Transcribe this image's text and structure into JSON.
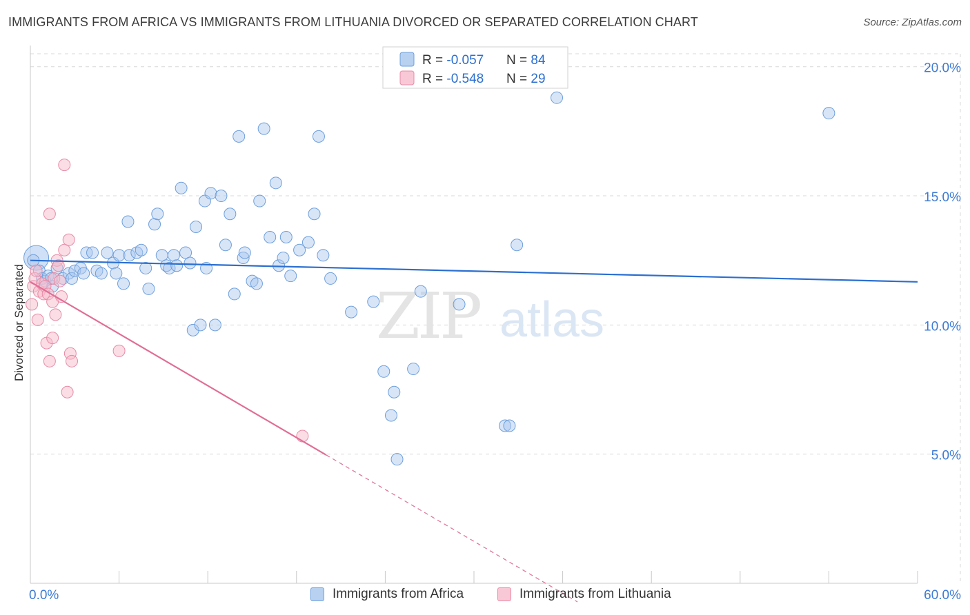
{
  "title": "IMMIGRANTS FROM AFRICA VS IMMIGRANTS FROM LITHUANIA DIVORCED OR SEPARATED CORRELATION CHART",
  "source": "Source: ZipAtlas.com",
  "watermark": {
    "zip": "ZIP",
    "atlas": "atlas"
  },
  "legend": {
    "rows": [
      {
        "r_label": "R = ",
        "r_value": "-0.057",
        "n_label": "N = ",
        "n_value": "84"
      },
      {
        "r_label": "R = ",
        "r_value": "-0.548",
        "n_label": "N = ",
        "n_value": "29"
      }
    ]
  },
  "bottom_legend": [
    "Immigrants from Africa",
    "Immigrants from Lithuania"
  ],
  "colors": {
    "africa_fill": "#a9c6ee",
    "africa_stroke": "#6d9fdc",
    "africa_line": "#2b6fd0",
    "lithuania_fill": "#f6bccc",
    "lithuania_stroke": "#e88aa6",
    "lithuania_line": "#e06d95",
    "tick_label": "#3d7bd4",
    "grid": "#d8d8d8"
  },
  "chart_data": {
    "type": "scatter",
    "title": "IMMIGRANTS FROM AFRICA VS IMMIGRANTS FROM LITHUANIA DIVORCED OR SEPARATED CORRELATION CHART",
    "xlabel": "",
    "ylabel": "Divorced or Separated",
    "xlim": [
      0,
      60
    ],
    "ylim": [
      0,
      20.5
    ],
    "x_tick_labels": [
      "0.0%",
      "60.0%"
    ],
    "y_ticks": [
      5,
      10,
      15,
      20
    ],
    "y_tick_labels": [
      "5.0%",
      "10.0%",
      "15.0%",
      "20.0%"
    ],
    "series": [
      {
        "name": "Immigrants from Africa",
        "trend": {
          "x": [
            0,
            60
          ],
          "y": [
            12.5,
            11.67
          ]
        },
        "points": [
          [
            0.4,
            12.6
          ],
          [
            0.6,
            12.1
          ],
          [
            0.8,
            11.8
          ],
          [
            1.0,
            11.7
          ],
          [
            1.2,
            11.9
          ],
          [
            1.5,
            11.5
          ],
          [
            1.8,
            12.2
          ],
          [
            2.2,
            11.8
          ],
          [
            2.6,
            12.0
          ],
          [
            2.8,
            11.8
          ],
          [
            3.0,
            12.1
          ],
          [
            3.4,
            12.2
          ],
          [
            3.6,
            12.0
          ],
          [
            3.8,
            12.8
          ],
          [
            4.2,
            12.8
          ],
          [
            4.5,
            12.1
          ],
          [
            4.8,
            12.0
          ],
          [
            5.2,
            12.8
          ],
          [
            5.6,
            12.4
          ],
          [
            5.8,
            12.0
          ],
          [
            6.0,
            12.7
          ],
          [
            6.3,
            11.6
          ],
          [
            6.6,
            14.0
          ],
          [
            6.7,
            12.7
          ],
          [
            7.2,
            12.8
          ],
          [
            7.5,
            12.9
          ],
          [
            7.8,
            12.2
          ],
          [
            8.0,
            11.4
          ],
          [
            8.4,
            13.9
          ],
          [
            8.6,
            14.3
          ],
          [
            8.9,
            12.7
          ],
          [
            9.2,
            12.3
          ],
          [
            9.4,
            12.2
          ],
          [
            9.7,
            12.7
          ],
          [
            9.9,
            12.3
          ],
          [
            10.2,
            15.3
          ],
          [
            10.5,
            12.8
          ],
          [
            10.8,
            12.4
          ],
          [
            11.0,
            9.8
          ],
          [
            11.2,
            13.8
          ],
          [
            11.5,
            10.0
          ],
          [
            11.8,
            14.8
          ],
          [
            11.9,
            12.2
          ],
          [
            12.2,
            15.1
          ],
          [
            12.5,
            10.0
          ],
          [
            12.9,
            15.0
          ],
          [
            13.2,
            13.1
          ],
          [
            13.5,
            14.3
          ],
          [
            13.8,
            11.2
          ],
          [
            14.1,
            17.3
          ],
          [
            14.4,
            12.6
          ],
          [
            14.5,
            12.8
          ],
          [
            15.0,
            11.7
          ],
          [
            15.3,
            11.6
          ],
          [
            15.5,
            14.8
          ],
          [
            15.8,
            17.6
          ],
          [
            16.2,
            13.4
          ],
          [
            16.6,
            15.5
          ],
          [
            16.8,
            12.3
          ],
          [
            17.1,
            12.6
          ],
          [
            17.3,
            13.4
          ],
          [
            17.6,
            11.9
          ],
          [
            18.2,
            12.9
          ],
          [
            18.8,
            13.2
          ],
          [
            19.2,
            14.3
          ],
          [
            19.5,
            17.3
          ],
          [
            19.8,
            12.7
          ],
          [
            20.3,
            11.8
          ],
          [
            21.7,
            10.5
          ],
          [
            23.2,
            10.9
          ],
          [
            23.9,
            8.2
          ],
          [
            24.4,
            6.5
          ],
          [
            24.6,
            7.4
          ],
          [
            24.8,
            4.8
          ],
          [
            25.9,
            8.3
          ],
          [
            26.4,
            11.3
          ],
          [
            29.0,
            10.8
          ],
          [
            32.1,
            6.1
          ],
          [
            32.4,
            6.1
          ],
          [
            32.9,
            13.1
          ],
          [
            35.6,
            18.8
          ],
          [
            54.0,
            18.2
          ],
          [
            0.2,
            12.5
          ],
          [
            1.4,
            11.8
          ]
        ]
      },
      {
        "name": "Immigrants from Lithuania",
        "trend": {
          "x": [
            0,
            20
          ],
          "y": [
            11.67,
            4.97
          ]
        },
        "trend_extension": {
          "x": [
            20,
            37.0
          ],
          "y": [
            4.97,
            -0.72
          ]
        },
        "points": [
          [
            0.1,
            10.8
          ],
          [
            0.2,
            11.5
          ],
          [
            0.3,
            11.8
          ],
          [
            0.4,
            12.1
          ],
          [
            0.5,
            10.2
          ],
          [
            0.6,
            11.3
          ],
          [
            0.8,
            11.6
          ],
          [
            0.9,
            11.2
          ],
          [
            1.0,
            11.5
          ],
          [
            1.1,
            9.3
          ],
          [
            1.2,
            11.2
          ],
          [
            1.3,
            8.6
          ],
          [
            1.3,
            14.3
          ],
          [
            1.5,
            9.5
          ],
          [
            1.5,
            10.9
          ],
          [
            1.6,
            11.8
          ],
          [
            1.7,
            10.4
          ],
          [
            1.8,
            12.5
          ],
          [
            1.9,
            12.3
          ],
          [
            2.0,
            11.7
          ],
          [
            2.1,
            11.1
          ],
          [
            2.3,
            12.9
          ],
          [
            2.3,
            16.2
          ],
          [
            2.5,
            7.4
          ],
          [
            2.6,
            13.3
          ],
          [
            2.7,
            8.9
          ],
          [
            2.8,
            8.6
          ],
          [
            6.0,
            9.0
          ],
          [
            18.4,
            5.7
          ]
        ]
      }
    ]
  }
}
